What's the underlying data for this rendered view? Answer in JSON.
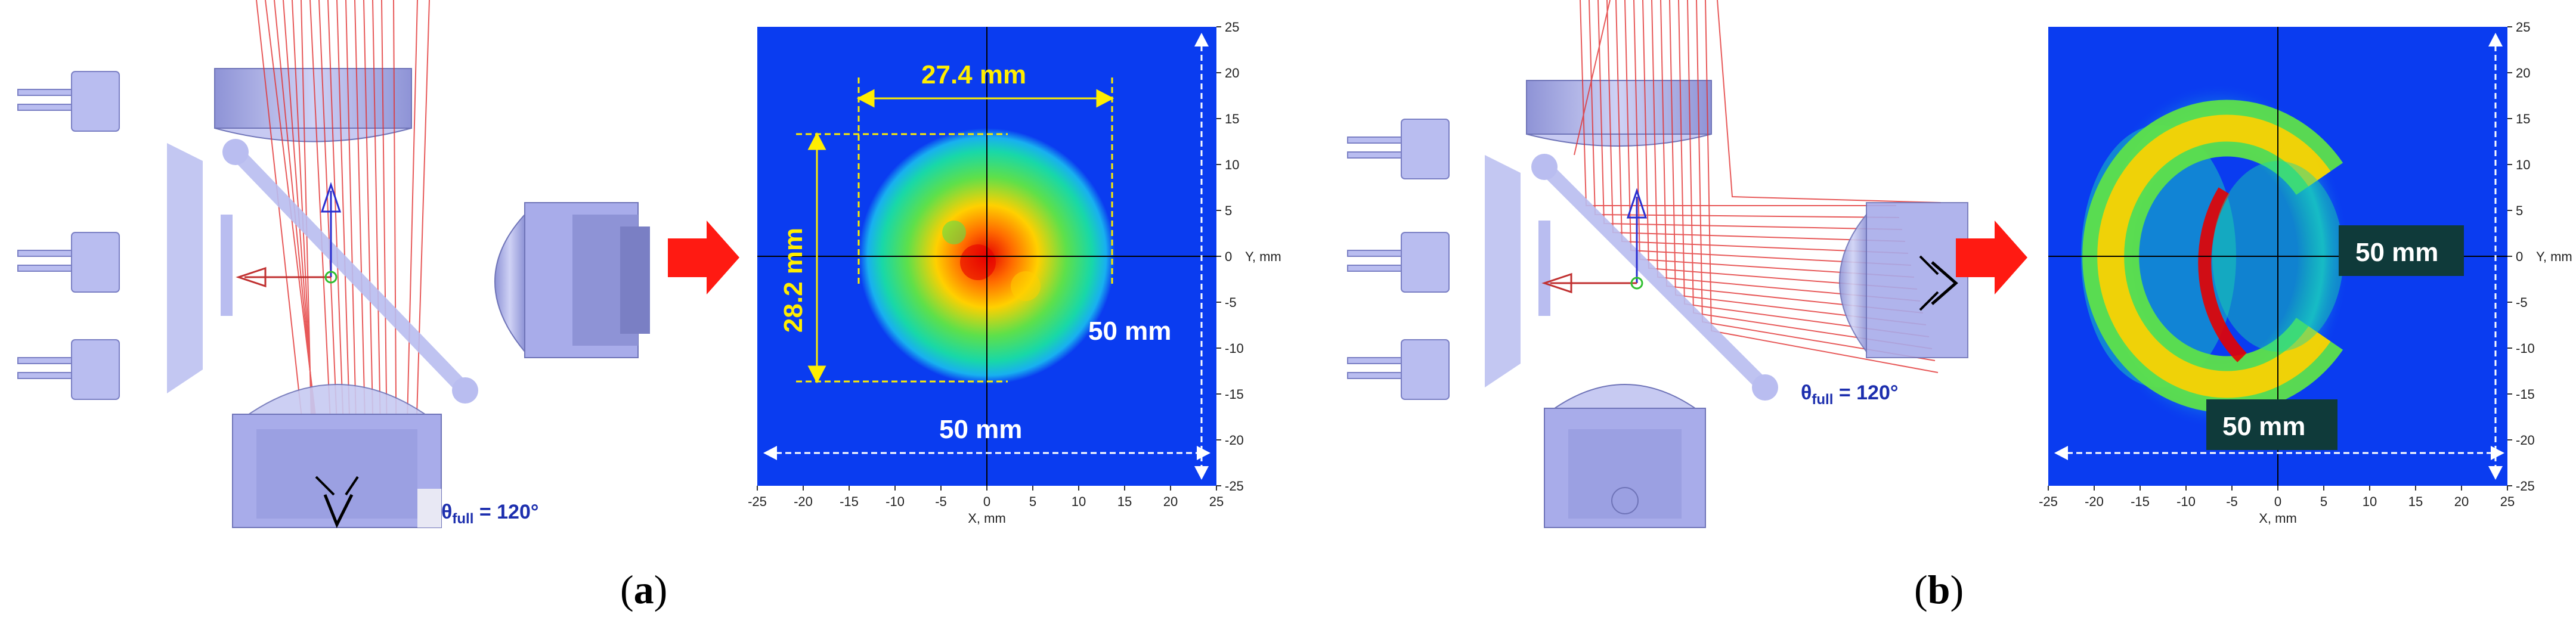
{
  "panels": {
    "a": {
      "caption_open": "(",
      "caption_letter": "a",
      "caption_close": ")",
      "theta": {
        "symbol": "θ",
        "sub": "full",
        "value": " = 120°"
      },
      "plot": {
        "dim_width": "27.4 mm",
        "dim_height": "28.2 mm",
        "dim_side": "50 mm",
        "dim_bottom": "50 mm"
      }
    },
    "b": {
      "caption_open": "(",
      "caption_letter": "b",
      "caption_close": ")",
      "theta": {
        "symbol": "θ",
        "sub": "full",
        "value": " = 120°"
      },
      "plot": {
        "dim_side": "50 mm",
        "dim_bottom": "50 mm"
      }
    }
  },
  "axes": {
    "x_title": "X, mm",
    "y_title": "Y, mm",
    "x_ticks": [
      "-25",
      "-20",
      "-15",
      "-10",
      "-5",
      "0",
      "5",
      "10",
      "15",
      "20",
      "25"
    ],
    "y_ticks": [
      "25",
      "20",
      "15",
      "10",
      "5",
      "0",
      "-5",
      "-10",
      "-15",
      "-20",
      "-25"
    ],
    "range": [
      -25,
      25
    ]
  },
  "colors": {
    "background_field": "#0a3cf0",
    "ray": "#e23030",
    "optic": "#b9bdf0",
    "arrow": "#ff1a12",
    "dim_yellow": "#ffee00",
    "dim_white": "#ffffff",
    "theta": "#1d2fae"
  }
}
